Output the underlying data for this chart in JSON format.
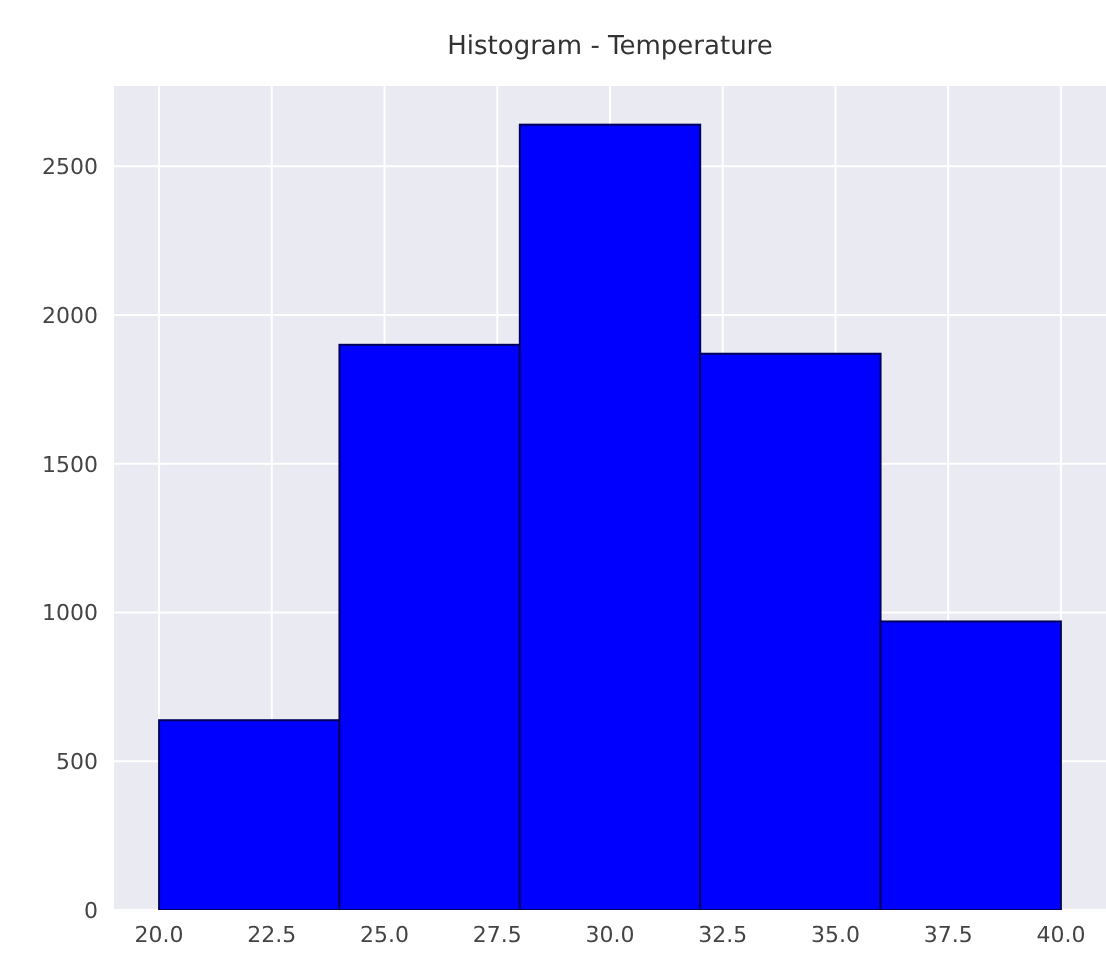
{
  "chart_data": {
    "type": "histogram",
    "title": "Histogram - Temperature",
    "bins": [
      20,
      24,
      28,
      32,
      36,
      40
    ],
    "values": [
      638,
      1900,
      2640,
      1870,
      970
    ],
    "color": "#0000ff",
    "xlim": [
      19,
      41
    ],
    "ylim": [
      0,
      2770
    ],
    "xticks": [
      {
        "value": 20,
        "label": "20.0"
      },
      {
        "value": 22.5,
        "label": "22.5"
      },
      {
        "value": 25,
        "label": "25.0"
      },
      {
        "value": 27.5,
        "label": "27.5"
      },
      {
        "value": 30,
        "label": "30.0"
      },
      {
        "value": 32.5,
        "label": "32.5"
      },
      {
        "value": 35,
        "label": "35.0"
      },
      {
        "value": 37.5,
        "label": "37.5"
      },
      {
        "value": 40,
        "label": "40.0"
      }
    ],
    "yticks": [
      0,
      500,
      1000,
      1500,
      2000,
      2500
    ],
    "grid": true
  }
}
